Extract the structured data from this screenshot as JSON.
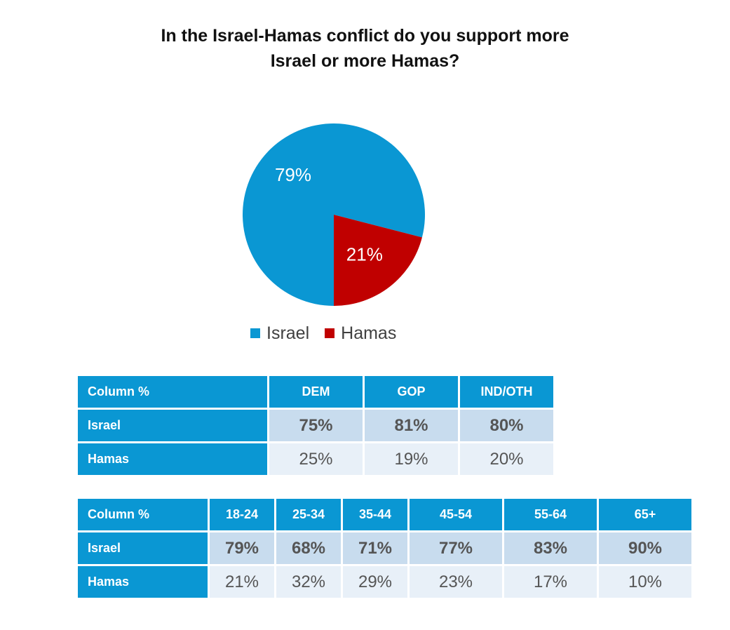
{
  "title_lines": [
    "In the Israel-Hamas conflict do you support more",
    "Israel or more Hamas?"
  ],
  "colors": {
    "israel": "#0a97d3",
    "hamas": "#c00000"
  },
  "chart_data": [
    {
      "type": "pie",
      "title": "In the Israel-Hamas conflict do you support more Israel or more Hamas?",
      "legend_position": "bottom",
      "slices": [
        {
          "name": "Israel",
          "value": 79,
          "label": "79%",
          "color": "#0a97d3"
        },
        {
          "name": "Hamas",
          "value": 21,
          "label": "21%",
          "color": "#c00000"
        }
      ]
    },
    {
      "type": "table",
      "header": [
        "Column %",
        "DEM",
        "GOP",
        "IND/OTH"
      ],
      "rows": [
        {
          "label": "Israel",
          "values": [
            "75%",
            "81%",
            "80%"
          ]
        },
        {
          "label": "Hamas",
          "values": [
            "25%",
            "19%",
            "20%"
          ]
        }
      ]
    },
    {
      "type": "table",
      "header": [
        "Column %",
        "18-24",
        "25-34",
        "35-44",
        "45-54",
        "55-64",
        "65+"
      ],
      "rows": [
        {
          "label": "Israel",
          "values": [
            "79%",
            "68%",
            "71%",
            "77%",
            "83%",
            "90%"
          ]
        },
        {
          "label": "Hamas",
          "values": [
            "21%",
            "32%",
            "29%",
            "23%",
            "17%",
            "10%"
          ]
        }
      ]
    }
  ]
}
